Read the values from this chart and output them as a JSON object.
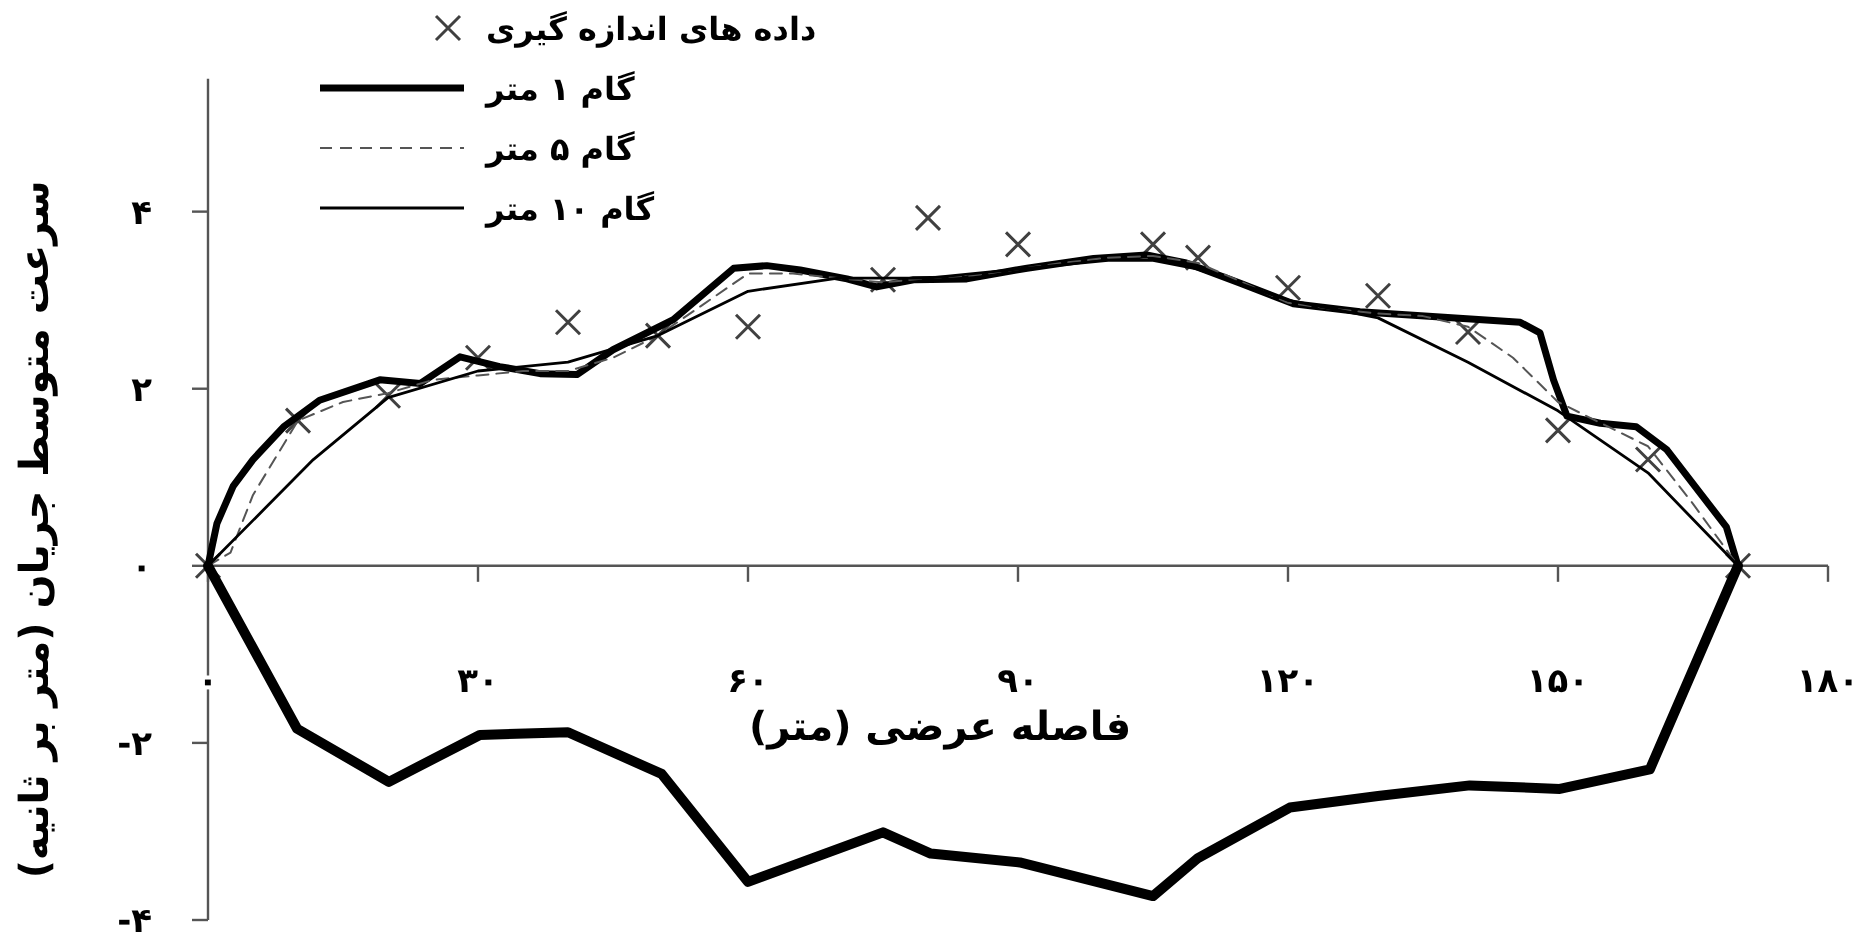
{
  "chart_data": {
    "type": "line",
    "xlabel": "فاصله عرضی (متر)",
    "ylabel": "سرعت متوسط جریان (متر بر ثانیه)",
    "xlim": [
      0,
      180
    ],
    "ylim": [
      -4,
      5.5
    ],
    "xticks": [
      {
        "value": 0,
        "label": "۰"
      },
      {
        "value": 30,
        "label": "۳۰"
      },
      {
        "value": 60,
        "label": "۶۰"
      },
      {
        "value": 90,
        "label": "۹۰"
      },
      {
        "value": 120,
        "label": "۱۲۰"
      },
      {
        "value": 150,
        "label": "۱۵۰"
      },
      {
        "value": 180,
        "label": "۱۸۰"
      }
    ],
    "yticks": [
      {
        "value": -4,
        "label": "-۴"
      },
      {
        "value": -2,
        "label": "-۲"
      },
      {
        "value": 0,
        "label": "۰"
      },
      {
        "value": 2,
        "label": "۲"
      },
      {
        "value": 4,
        "label": "۴"
      }
    ],
    "legend": "top left",
    "series": [
      {
        "name": "داده های اندازه گیری",
        "type": "scatter",
        "marker": "cross",
        "color": "#404040",
        "x": [
          0,
          10,
          20,
          30,
          40,
          50,
          60,
          75,
          80,
          90,
          105,
          110,
          120,
          130,
          140,
          150,
          160,
          170
        ],
        "values": [
          0,
          1.64,
          1.92,
          2.35,
          2.75,
          2.6,
          2.7,
          3.23,
          3.93,
          3.63,
          3.63,
          3.48,
          3.14,
          3.05,
          2.64,
          1.53,
          1.2,
          0
        ]
      },
      {
        "name": "گام ۱ متر",
        "type": "line",
        "line_style": "solid",
        "color": "#000000",
        "x": [
          0,
          1,
          2.8,
          5,
          8.4,
          12.4,
          19.1,
          23.6,
          28,
          32.4,
          36.9,
          41,
          45,
          51.7,
          58.4,
          62.1,
          65.8,
          71,
          74.3,
          78.4,
          84.3,
          89.8,
          91,
          98.4,
          104.3,
          108.7,
          114.7,
          120.6,
          128,
          136.9,
          145.8,
          148,
          149.5,
          151,
          154.7,
          158.7,
          162.1,
          165.8,
          168.7,
          170
        ],
        "values": [
          0,
          0.48,
          0.9,
          1.2,
          1.57,
          1.87,
          2.1,
          2.06,
          2.36,
          2.25,
          2.17,
          2.16,
          2.44,
          2.78,
          3.36,
          3.39,
          3.34,
          3.24,
          3.15,
          3.23,
          3.24,
          3.34,
          3.36,
          3.47,
          3.51,
          3.42,
          3.19,
          2.96,
          2.87,
          2.81,
          2.75,
          2.63,
          2.1,
          1.69,
          1.61,
          1.57,
          1.31,
          0.82,
          0.44,
          0
        ]
      },
      {
        "name": "گام ۵ متر",
        "type": "line",
        "line_style": "dashed",
        "color": "#555555",
        "x": [
          0,
          2.5,
          5,
          10,
          15,
          20,
          25,
          30,
          35,
          40,
          45,
          50,
          55,
          60,
          65,
          70,
          75,
          80,
          85,
          90,
          95,
          100,
          105,
          110,
          115,
          120,
          125,
          130,
          135,
          140,
          145,
          150,
          155,
          160,
          165,
          170
        ],
        "values": [
          0,
          0.15,
          0.8,
          1.64,
          1.85,
          1.95,
          2.1,
          2.15,
          2.2,
          2.2,
          2.35,
          2.6,
          2.95,
          3.3,
          3.3,
          3.25,
          3.2,
          3.25,
          3.28,
          3.35,
          3.42,
          3.48,
          3.5,
          3.42,
          3.2,
          2.97,
          2.9,
          2.85,
          2.82,
          2.7,
          2.35,
          1.85,
          1.6,
          1.35,
          0.7,
          0
        ]
      },
      {
        "name": "گام ۱۰ متر",
        "type": "line",
        "line_style": "solid",
        "color": "#000000",
        "x": [
          0,
          11.7,
          20,
          30,
          40,
          50,
          60,
          70,
          80,
          90,
          100,
          105,
          110,
          120,
          130,
          140,
          150,
          160,
          170
        ],
        "values": [
          0,
          1.2,
          1.9,
          2.2,
          2.3,
          2.6,
          3.1,
          3.25,
          3.25,
          3.35,
          3.45,
          3.45,
          3.35,
          3.0,
          2.8,
          2.3,
          1.75,
          1.05,
          0
        ]
      },
      {
        "type": "line",
        "line_style": "solid",
        "color": "#000000",
        "x": [
          0,
          9.9,
          20.1,
          30.2,
          40,
          50.4,
          60,
          75,
          80.3,
          90.2,
          105,
          110,
          120.2,
          130,
          140.2,
          150.2,
          160.2,
          170
        ],
        "values": [
          0,
          -1.84,
          -2.44,
          -1.91,
          -1.88,
          -2.35,
          -3.57,
          -3.01,
          -3.25,
          -3.35,
          -3.73,
          -3.3,
          -2.73,
          -2.6,
          -2.48,
          -2.52,
          -2.3,
          0
        ]
      }
    ]
  }
}
